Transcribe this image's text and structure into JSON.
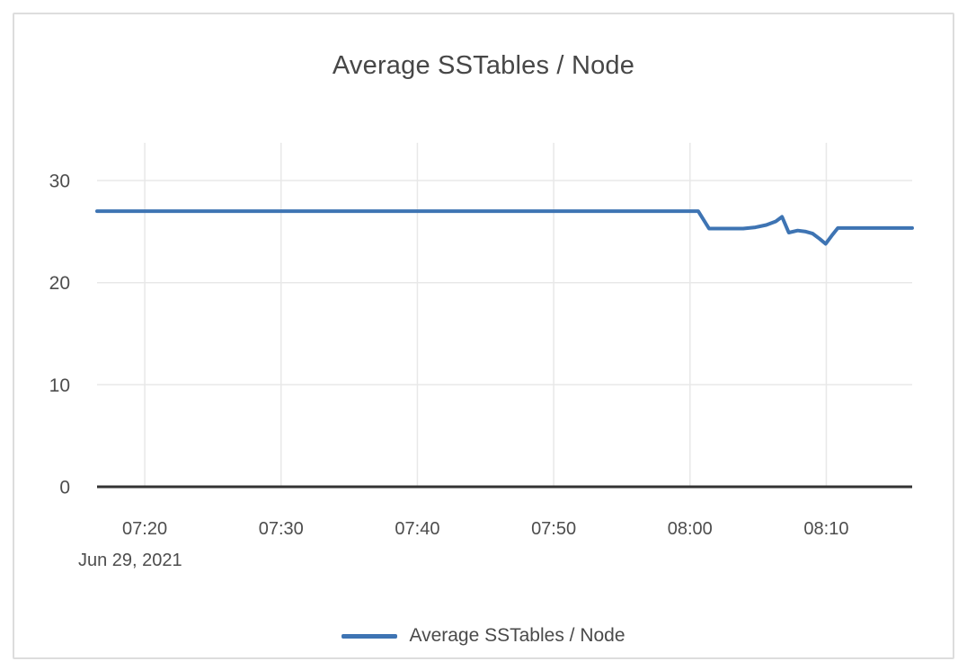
{
  "card": {
    "title": "Average SSTables / Node"
  },
  "legend": {
    "label": "Average SSTables / Node"
  },
  "colors": {
    "series": "#3e74b3",
    "axis": "#333333",
    "grid": "#e8e8e8",
    "border": "#dddddd",
    "title_text": "#474747",
    "tick_text": "#4d4d4d"
  },
  "chart_data": {
    "type": "line",
    "title": "Average SSTables / Node",
    "date_label": "Jun 29, 2021",
    "x_unit": "time of day (HH:MM); x values encoded as minutes after 07:00",
    "ylabel": "",
    "xlabel": "",
    "xlim": [
      16.5,
      76.3
    ],
    "ylim": [
      0,
      33.7
    ],
    "grid": true,
    "legend_position": "bottom",
    "x_ticks": [
      {
        "t": 20,
        "label": "07:20"
      },
      {
        "t": 30,
        "label": "07:30"
      },
      {
        "t": 40,
        "label": "07:40"
      },
      {
        "t": 50,
        "label": "07:50"
      },
      {
        "t": 60,
        "label": "08:00"
      },
      {
        "t": 70,
        "label": "08:10"
      }
    ],
    "y_ticks": [
      {
        "v": 0,
        "label": "0"
      },
      {
        "v": 10,
        "label": "10"
      },
      {
        "v": 20,
        "label": "20"
      },
      {
        "v": 30,
        "label": "30"
      }
    ],
    "series": [
      {
        "name": "Average SSTables / Node",
        "color": "#3e74b3",
        "points": [
          [
            16.5,
            27
          ],
          [
            60.6,
            27
          ],
          [
            61.4,
            25.3
          ],
          [
            63.9,
            25.3
          ],
          [
            64.8,
            25.42
          ],
          [
            65.6,
            25.65
          ],
          [
            66.3,
            26.0
          ],
          [
            66.75,
            26.45
          ],
          [
            67.25,
            24.9
          ],
          [
            67.9,
            25.1
          ],
          [
            68.5,
            25.0
          ],
          [
            69.0,
            24.8
          ],
          [
            69.5,
            24.3
          ],
          [
            69.95,
            23.8
          ],
          [
            70.4,
            24.6
          ],
          [
            70.85,
            25.35
          ],
          [
            76.3,
            25.35
          ]
        ]
      }
    ]
  }
}
